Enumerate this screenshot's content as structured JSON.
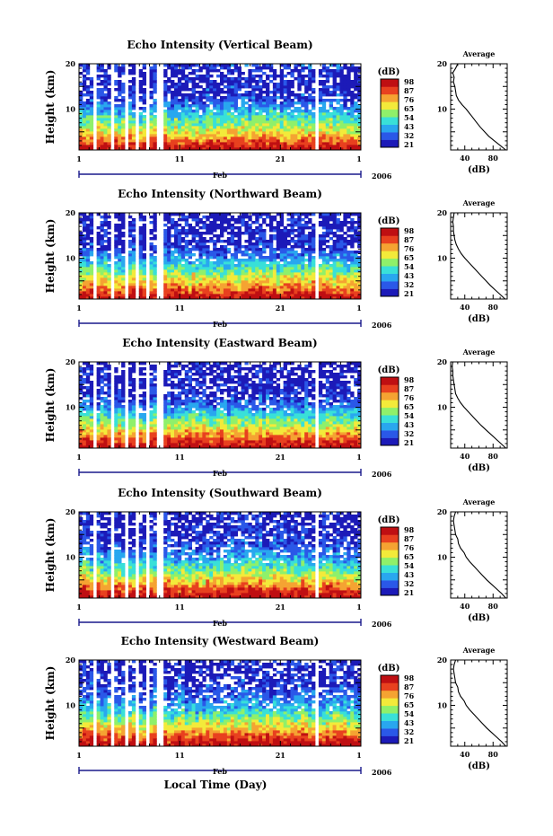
{
  "figure": {
    "xlabel": "Local Time (Day)",
    "month_label": "Feb",
    "year_label": "2006",
    "ylabel": "Height (km)",
    "colorbar_unit": "(dB)",
    "avg_title": "Average",
    "avg_xlabel": "(dB)"
  },
  "chart_data": [
    {
      "type": "heatmap",
      "title": "Echo Intensity (Vertical Beam)",
      "x_ticks": [
        "1",
        "11",
        "21",
        "1"
      ],
      "y_ticks": [
        "10",
        "20"
      ],
      "ylim": [
        1,
        20
      ],
      "x_range_days": [
        1,
        29
      ],
      "colorbar_levels": [
        "98",
        "87",
        "76",
        "65",
        "54",
        "43",
        "32",
        "21"
      ],
      "colorbar_range": [
        21,
        98
      ],
      "colormap": [
        "#1c1ab8",
        "#2a58e8",
        "#29a7ef",
        "#39e0d8",
        "#8ff06a",
        "#f3ea3a",
        "#f5a332",
        "#e8411f",
        "#bf0f12"
      ],
      "average_profile": {
        "x_ticks": [
          "40",
          "80"
        ],
        "x_range_db": [
          20,
          100
        ],
        "height_km": [
          1,
          2,
          3,
          4,
          5,
          6,
          7,
          8,
          9,
          10,
          11,
          12,
          13,
          14,
          15,
          16,
          17,
          18,
          19,
          20
        ],
        "echo_db": [
          98,
          90,
          82,
          74,
          68,
          62,
          57,
          52,
          47,
          42,
          36,
          31,
          28,
          27,
          26,
          24,
          25,
          23,
          27,
          30
        ]
      }
    },
    {
      "type": "heatmap",
      "title": "Echo Intensity (Northward Beam)",
      "x_ticks": [
        "1",
        "11",
        "21",
        "1"
      ],
      "y_ticks": [
        "10",
        "20"
      ],
      "ylim": [
        1,
        20
      ],
      "x_range_days": [
        1,
        29
      ],
      "colorbar_levels": [
        "98",
        "87",
        "76",
        "65",
        "54",
        "43",
        "32",
        "21"
      ],
      "colorbar_range": [
        21,
        98
      ],
      "colormap": [
        "#1c1ab8",
        "#2a58e8",
        "#29a7ef",
        "#39e0d8",
        "#8ff06a",
        "#f3ea3a",
        "#f5a332",
        "#e8411f",
        "#bf0f12"
      ],
      "average_profile": {
        "x_ticks": [
          "40",
          "80"
        ],
        "x_range_db": [
          20,
          100
        ],
        "height_km": [
          1,
          2,
          3,
          4,
          5,
          6,
          7,
          8,
          9,
          10,
          11,
          12,
          13,
          14,
          15,
          16,
          17,
          18,
          19,
          20
        ],
        "echo_db": [
          97,
          90,
          83,
          76,
          70,
          64,
          58,
          52,
          46,
          40,
          35,
          31,
          28,
          26,
          25,
          24,
          24,
          23,
          24,
          25
        ]
      }
    },
    {
      "type": "heatmap",
      "title": "Echo Intensity (Eastward Beam)",
      "x_ticks": [
        "1",
        "11",
        "21",
        "1"
      ],
      "y_ticks": [
        "10",
        "20"
      ],
      "ylim": [
        1,
        20
      ],
      "x_range_days": [
        1,
        29
      ],
      "colorbar_levels": [
        "98",
        "87",
        "76",
        "65",
        "54",
        "43",
        "32",
        "21"
      ],
      "colorbar_range": [
        21,
        98
      ],
      "colormap": [
        "#1c1ab8",
        "#2a58e8",
        "#29a7ef",
        "#39e0d8",
        "#8ff06a",
        "#f3ea3a",
        "#f5a332",
        "#e8411f",
        "#bf0f12"
      ],
      "average_profile": {
        "x_ticks": [
          "40",
          "80"
        ],
        "x_range_db": [
          20,
          100
        ],
        "height_km": [
          1,
          2,
          3,
          4,
          5,
          6,
          7,
          8,
          9,
          10,
          11,
          12,
          13,
          14,
          15,
          16,
          17,
          18,
          19,
          20
        ],
        "echo_db": [
          98,
          91,
          84,
          77,
          70,
          63,
          57,
          51,
          45,
          39,
          34,
          30,
          27,
          26,
          25,
          24,
          23,
          23,
          22,
          23
        ]
      }
    },
    {
      "type": "heatmap",
      "title": "Echo Intensity (Southward Beam)",
      "x_ticks": [
        "1",
        "11",
        "21",
        "1"
      ],
      "y_ticks": [
        "10",
        "20"
      ],
      "ylim": [
        1,
        20
      ],
      "x_range_days": [
        1,
        29
      ],
      "colorbar_levels": [
        "98",
        "87",
        "76",
        "65",
        "54",
        "43",
        "32",
        "21"
      ],
      "colorbar_range": [
        21,
        98
      ],
      "colormap": [
        "#1c1ab8",
        "#2a58e8",
        "#29a7ef",
        "#39e0d8",
        "#8ff06a",
        "#f3ea3a",
        "#f5a332",
        "#e8411f",
        "#bf0f12"
      ],
      "average_profile": {
        "x_ticks": [
          "40",
          "80"
        ],
        "x_range_db": [
          20,
          100
        ],
        "height_km": [
          1,
          2,
          3,
          4,
          5,
          6,
          7,
          8,
          9,
          10,
          11,
          12,
          13,
          14,
          15,
          16,
          17,
          18,
          19,
          20
        ],
        "echo_db": [
          98,
          92,
          85,
          78,
          71,
          65,
          59,
          53,
          47,
          42,
          39,
          34,
          31,
          30,
          27,
          26,
          25,
          24,
          25,
          27
        ]
      }
    },
    {
      "type": "heatmap",
      "title": "Echo Intensity (Westward Beam)",
      "x_ticks": [
        "1",
        "11",
        "21",
        "1"
      ],
      "y_ticks": [
        "10",
        "20"
      ],
      "ylim": [
        1,
        20
      ],
      "x_range_days": [
        1,
        29
      ],
      "colorbar_levels": [
        "98",
        "87",
        "76",
        "65",
        "54",
        "43",
        "32",
        "21"
      ],
      "colorbar_range": [
        21,
        98
      ],
      "colormap": [
        "#1c1ab8",
        "#2a58e8",
        "#29a7ef",
        "#39e0d8",
        "#8ff06a",
        "#f3ea3a",
        "#f5a332",
        "#e8411f",
        "#bf0f12"
      ],
      "average_profile": {
        "x_ticks": [
          "40",
          "80"
        ],
        "x_range_db": [
          20,
          100
        ],
        "height_km": [
          1,
          2,
          3,
          4,
          5,
          6,
          7,
          8,
          9,
          10,
          11,
          12,
          13,
          14,
          15,
          16,
          17,
          18,
          19,
          20
        ],
        "echo_db": [
          98,
          92,
          85,
          78,
          71,
          65,
          59,
          53,
          47,
          42,
          39,
          34,
          31,
          30,
          27,
          26,
          25,
          24,
          25,
          27
        ]
      }
    }
  ]
}
